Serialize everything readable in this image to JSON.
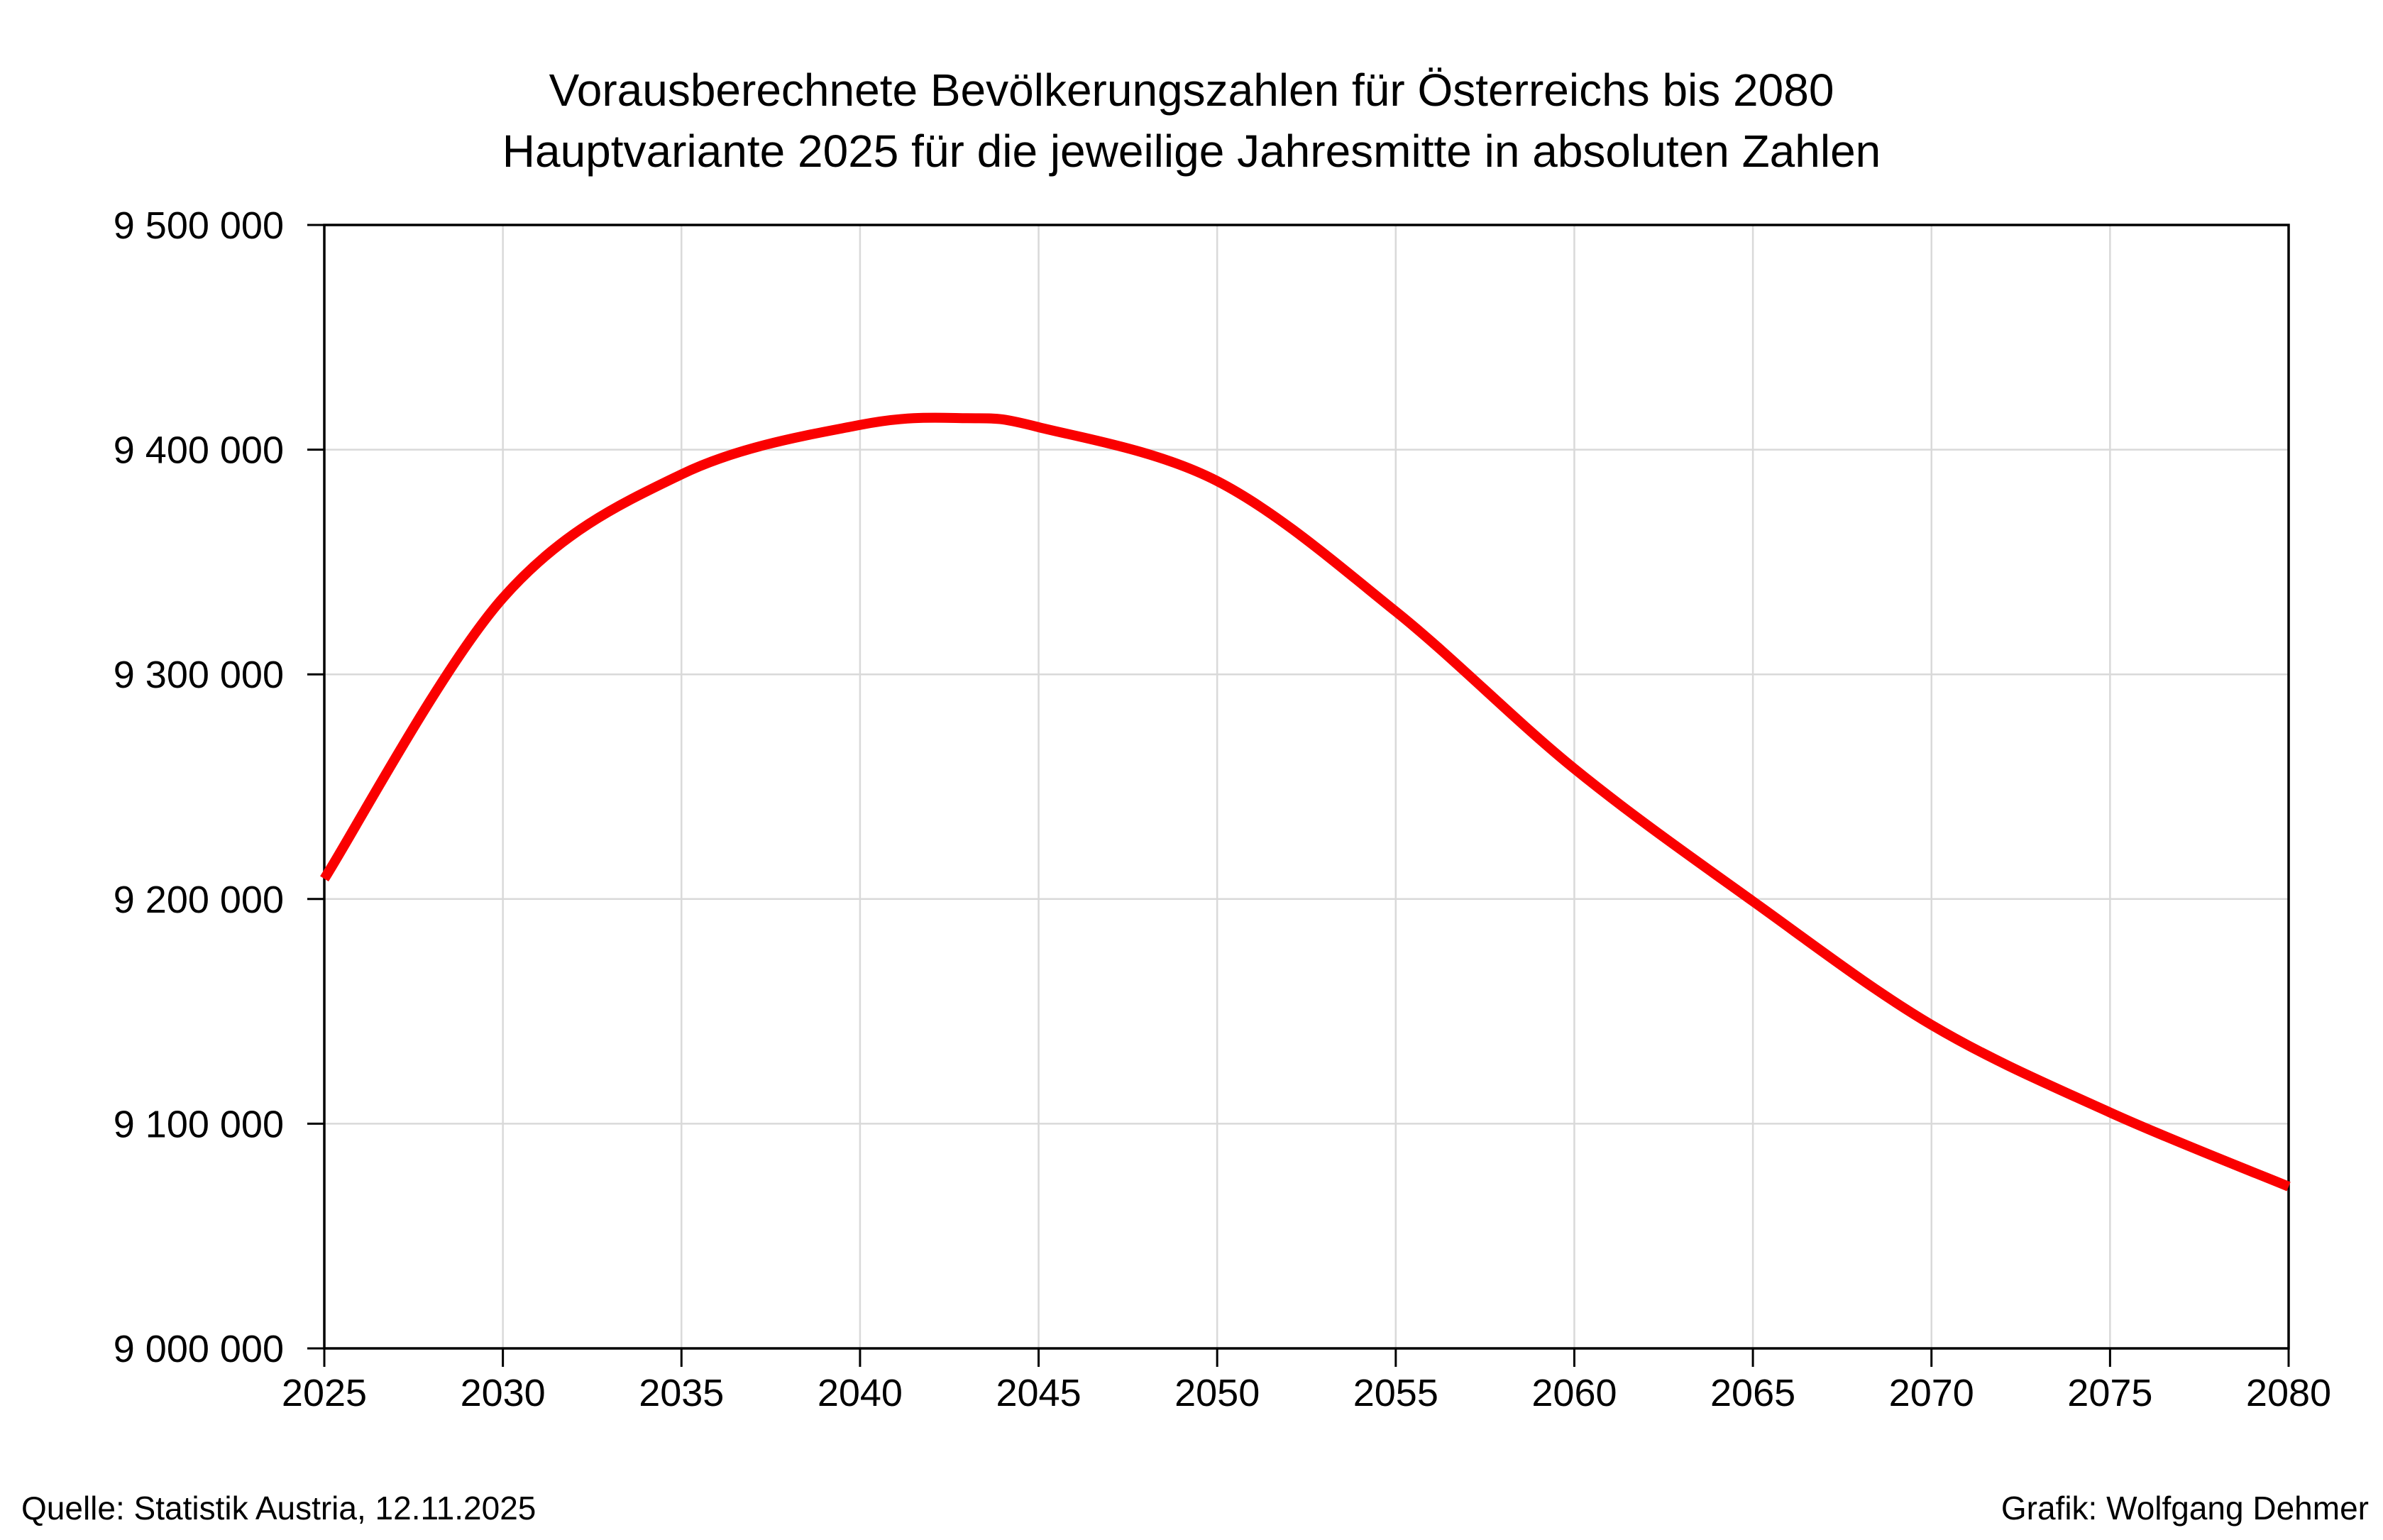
{
  "title": {
    "line1": "Vorausberechnete Bevölkerungszahlen für Österreichs bis 2080",
    "line2": "Hauptvariante 2025 für die jeweilige Jahresmitte in absoluten Zahlen"
  },
  "footer": {
    "source": "Quelle: Statistik Austria, 12.11.2025",
    "credit": "Grafik: Wolfgang Dehmer"
  },
  "chart_data": {
    "type": "line",
    "title": "Vorausberechnete Bevölkerungszahlen für Österreichs bis 2080 — Hauptvariante 2025 für die jeweilige Jahresmitte in absoluten Zahlen",
    "x": [
      2025,
      2030,
      2035,
      2040,
      2043,
      2045,
      2050,
      2055,
      2060,
      2065,
      2070,
      2075,
      2080
    ],
    "values": [
      9209000,
      9334000,
      9389000,
      9411000,
      9414000,
      9410000,
      9386000,
      9328000,
      9258000,
      9199000,
      9144000,
      9105000,
      9072000
    ],
    "xlim": [
      2025,
      2080
    ],
    "ylim": [
      9000000,
      9500000
    ],
    "x_ticks": [
      2025,
      2030,
      2035,
      2040,
      2045,
      2050,
      2055,
      2060,
      2065,
      2070,
      2075,
      2080
    ],
    "y_ticks": [
      9000000,
      9100000,
      9200000,
      9300000,
      9400000,
      9500000
    ],
    "y_tick_labels": [
      "9 000 000",
      "9 100 000",
      "9 200 000",
      "9 300 000",
      "9 400 000",
      "9 500 000"
    ],
    "grid": true,
    "legend": false,
    "line_color": "#fa0000",
    "grid_color": "#d9d9d9",
    "axis_color": "#000000"
  }
}
